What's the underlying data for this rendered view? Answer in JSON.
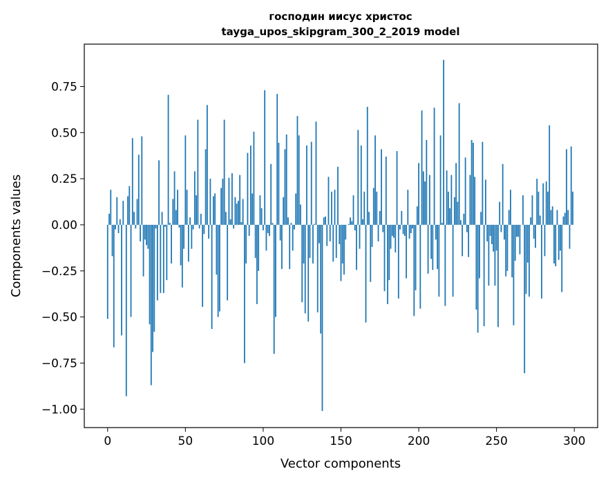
{
  "chart_data": {
    "type": "bar",
    "title_line1": "господин иисус христос",
    "title_line2": "tayga_upos_skipgram_300_2_2019 model",
    "xlabel": "Vector components",
    "ylabel": "Components values",
    "xlim": [
      -15,
      315
    ],
    "ylim": [
      -1.1,
      0.98
    ],
    "xticks": [
      0,
      50,
      100,
      150,
      200,
      250,
      300
    ],
    "xtick_labels": [
      "0",
      "50",
      "100",
      "150",
      "200",
      "250",
      "300"
    ],
    "yticks": [
      -1.0,
      -0.75,
      -0.5,
      -0.25,
      0.0,
      0.25,
      0.5,
      0.75
    ],
    "ytick_labels": [
      "−1.00",
      "−0.75",
      "−0.50",
      "−0.25",
      "0.00",
      "0.25",
      "0.50",
      "0.75"
    ],
    "grid": false,
    "bar_color": "#1f77b4",
    "values": [
      -0.51,
      0.06,
      0.19,
      -0.17,
      -0.665,
      -0.025,
      0.15,
      -0.045,
      0.03,
      -0.6,
      0.13,
      0.0,
      -0.93,
      0.155,
      0.21,
      -0.5,
      0.47,
      0.07,
      -0.02,
      0.14,
      0.38,
      -0.09,
      0.48,
      -0.28,
      -0.08,
      -0.11,
      -0.13,
      -0.54,
      -0.87,
      -0.69,
      -0.58,
      -0.02,
      -0.41,
      0.35,
      -0.37,
      0.07,
      -0.37,
      -0.01,
      -0.3,
      0.705,
      0.01,
      -0.21,
      0.14,
      0.29,
      0.08,
      0.19,
      -0.015,
      -0.22,
      -0.34,
      -0.13,
      0.485,
      0.19,
      -0.2,
      0.04,
      -0.13,
      -0.025,
      0.29,
      0.16,
      0.57,
      -0.02,
      0.06,
      -0.445,
      -0.05,
      0.41,
      0.65,
      -0.075,
      0.25,
      -0.565,
      0.155,
      0.17,
      -0.27,
      -0.5,
      -0.47,
      0.2,
      0.25,
      0.57,
      0.07,
      -0.41,
      0.255,
      0.03,
      0.28,
      -0.02,
      0.15,
      0.115,
      0.13,
      0.27,
      0.015,
      0.14,
      -0.75,
      -0.21,
      0.39,
      -0.06,
      0.43,
      0.17,
      0.505,
      -0.18,
      -0.43,
      -0.25,
      0.16,
      0.09,
      -0.03,
      0.73,
      -0.14,
      -0.045,
      -0.06,
      0.33,
      0.01,
      -0.7,
      -0.5,
      0.71,
      0.445,
      -0.085,
      -0.24,
      0.15,
      0.41,
      0.49,
      0.04,
      -0.24,
      0.01,
      -0.14,
      -0.025,
      0.17,
      0.59,
      0.485,
      0.11,
      -0.42,
      -0.21,
      -0.48,
      0.43,
      -0.525,
      -0.18,
      0.45,
      -0.21,
      0.005,
      0.56,
      -0.475,
      -0.1,
      -0.59,
      -1.01,
      0.04,
      0.045,
      -0.115,
      0.26,
      -0.09,
      0.18,
      -0.2,
      0.19,
      -0.18,
      0.315,
      -0.105,
      -0.305,
      -0.21,
      -0.27,
      -0.08,
      0.0,
      0.005,
      0.04,
      0.02,
      0.16,
      -0.03,
      -0.245,
      0.515,
      -0.13,
      0.43,
      0.03,
      0.18,
      -0.53,
      0.64,
      0.07,
      -0.31,
      -0.12,
      0.2,
      0.485,
      0.18,
      -0.09,
      0.075,
      0.41,
      -0.04,
      -0.36,
      0.37,
      -0.43,
      -0.3,
      -0.13,
      -0.06,
      -0.07,
      -0.15,
      0.4,
      -0.4,
      -0.025,
      0.075,
      -0.05,
      -0.06,
      -0.29,
      0.19,
      -0.075,
      -0.045,
      -0.02,
      -0.495,
      -0.355,
      0.1,
      0.335,
      -0.455,
      0.62,
      0.29,
      0.235,
      0.46,
      -0.265,
      0.27,
      -0.185,
      -0.245,
      0.635,
      -0.08,
      -0.24,
      -0.39,
      0.485,
      0.01,
      0.895,
      -0.44,
      0.295,
      0.18,
      0.09,
      0.27,
      -0.39,
      0.15,
      0.335,
      0.125,
      0.66,
      0.025,
      -0.17,
      0.06,
      0.365,
      -0.04,
      -0.175,
      0.27,
      0.46,
      0.445,
      0.26,
      -0.46,
      -0.585,
      -0.29,
      0.07,
      0.45,
      -0.55,
      0.245,
      -0.09,
      -0.33,
      -0.06,
      -0.105,
      -0.145,
      -0.33,
      -0.14,
      -0.555,
      0.125,
      -0.04,
      0.33,
      -0.08,
      -0.28,
      -0.25,
      0.08,
      0.19,
      -0.285,
      -0.545,
      -0.195,
      -0.065,
      -0.065,
      -0.16,
      0.0,
      0.16,
      -0.805,
      -0.375,
      -0.205,
      -0.39,
      0.04,
      0.16,
      -0.075,
      -0.125,
      0.25,
      0.18,
      0.05,
      -0.4,
      0.225,
      -0.17,
      0.235,
      0.18,
      0.54,
      0.08,
      0.1,
      -0.21,
      -0.225,
      0.08,
      -0.19,
      -0.14,
      -0.365,
      0.045,
      0.065,
      0.41,
      0.08,
      -0.13,
      0.425,
      0.18
    ]
  }
}
